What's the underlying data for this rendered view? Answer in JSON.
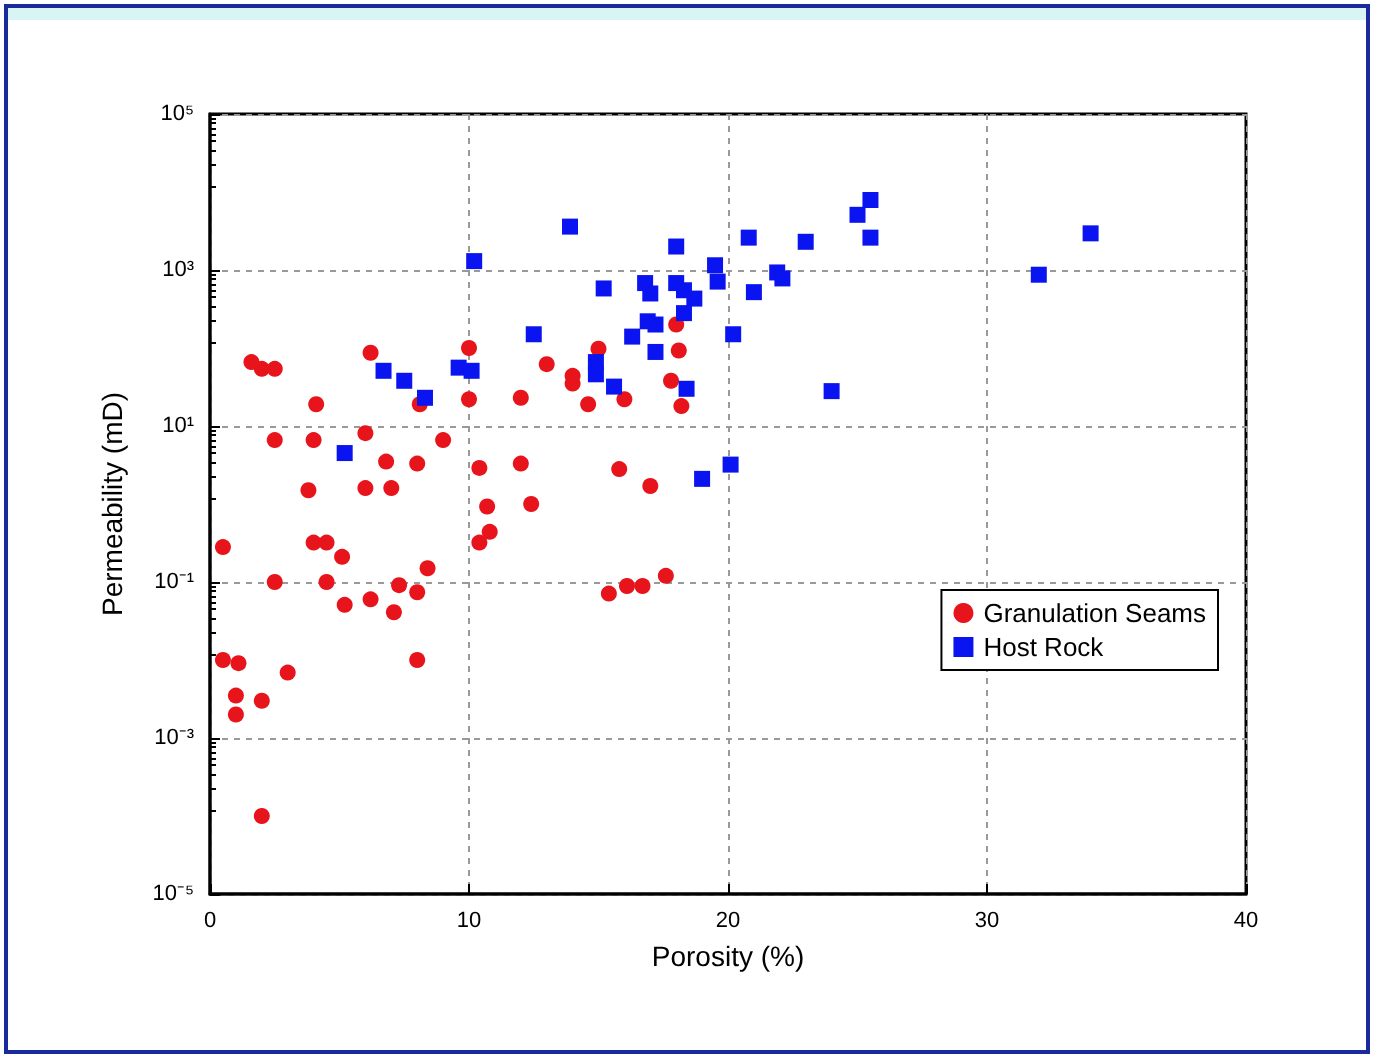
{
  "chart_data": {
    "type": "scatter",
    "xlabel": "Porosity (%)",
    "ylabel": "Permeability (mD)",
    "log": "y",
    "grid": true,
    "legend": "bottom right",
    "xlim": [
      0,
      40
    ],
    "xticks": [
      0,
      10,
      20,
      30,
      40
    ],
    "ylim": [
      1e-05,
      100000
    ],
    "yticks": [
      {
        "value": 1e-05,
        "label": "10⁻⁵"
      },
      {
        "value": 0.001,
        "label": "10⁻³"
      },
      {
        "value": 0.1,
        "label": "10⁻¹"
      },
      {
        "value": 10,
        "label": "10¹"
      },
      {
        "value": 1000,
        "label": "10³"
      },
      {
        "value": 100000,
        "label": "10⁵"
      }
    ],
    "series": [
      {
        "name": "Granulation Seams",
        "color": "#e8141c",
        "marker": "circle",
        "x": [
          0.5,
          3.8,
          6.0,
          7.0,
          10.7,
          12.4,
          10.8,
          10.4,
          4.0,
          4.5,
          5.1,
          2.5,
          4.5,
          5.2,
          6.2,
          7.1,
          7.3,
          8.0,
          8.4,
          8.0,
          0.5,
          1.1,
          3.0,
          1.0,
          2.0,
          1.0,
          2.0,
          1.6,
          2.0,
          2.5,
          6.2,
          10.0,
          13.0,
          4.1,
          8.1,
          10.0,
          12.0,
          2.5,
          4.0,
          6.0,
          9.0,
          6.8,
          8.0,
          10.4,
          12.0,
          15.0,
          14.0,
          14.0,
          14.6,
          16.0,
          17.8,
          18.1,
          18.0,
          18.2,
          15.8,
          17.0,
          15.4,
          16.1,
          16.7,
          17.6
        ],
        "values": [
          0.28,
          1.5,
          1.6,
          1.6,
          0.93,
          1.0,
          0.44,
          0.32,
          0.32,
          0.32,
          0.21,
          0.1,
          0.1,
          0.051,
          0.06,
          0.041,
          0.091,
          0.074,
          0.15,
          0.01,
          0.01,
          0.0091,
          0.0069,
          0.0035,
          0.003,
          0.002,
          0.0001,
          66,
          54,
          54,
          87,
          100,
          62,
          19,
          19,
          22,
          23,
          6.6,
          6.6,
          8.1,
          6.6,
          3.5,
          3.3,
          2.9,
          3.3,
          98,
          44,
          35,
          19,
          22,
          38,
          93,
          200,
          18,
          2.8,
          1.7,
          0.071,
          0.089,
          0.089,
          0.12
        ]
      },
      {
        "name": "Host Rock",
        "color": "#0a14f0",
        "marker": "square",
        "x": [
          10.2,
          12.5,
          6.7,
          7.5,
          8.3,
          9.6,
          10.1,
          5.2,
          13.9,
          18.0,
          20.8,
          23.0,
          25.0,
          25.5,
          25.5,
          19.5,
          19.6,
          21.9,
          22.1,
          21.0,
          15.2,
          16.8,
          17.0,
          18.0,
          18.3,
          18.7,
          18.3,
          16.9,
          17.2,
          16.3,
          17.2,
          20.2,
          14.9,
          14.9,
          15.6,
          18.4,
          24.0,
          20.1,
          19.0,
          34.0,
          32.0
        ],
        "values": [
          1300,
          150,
          51,
          38,
          23,
          56,
          51,
          4.5,
          3600,
          2000,
          2600,
          2300,
          5100,
          7900,
          2600,
          1150,
          710,
          930,
          780,
          520,
          580,
          680,
          500,
          680,
          550,
          430,
          280,
          220,
          200,
          140,
          89,
          150,
          66,
          46,
          32,
          30,
          28,
          3.2,
          2.1,
          2950,
          870
        ]
      }
    ]
  }
}
